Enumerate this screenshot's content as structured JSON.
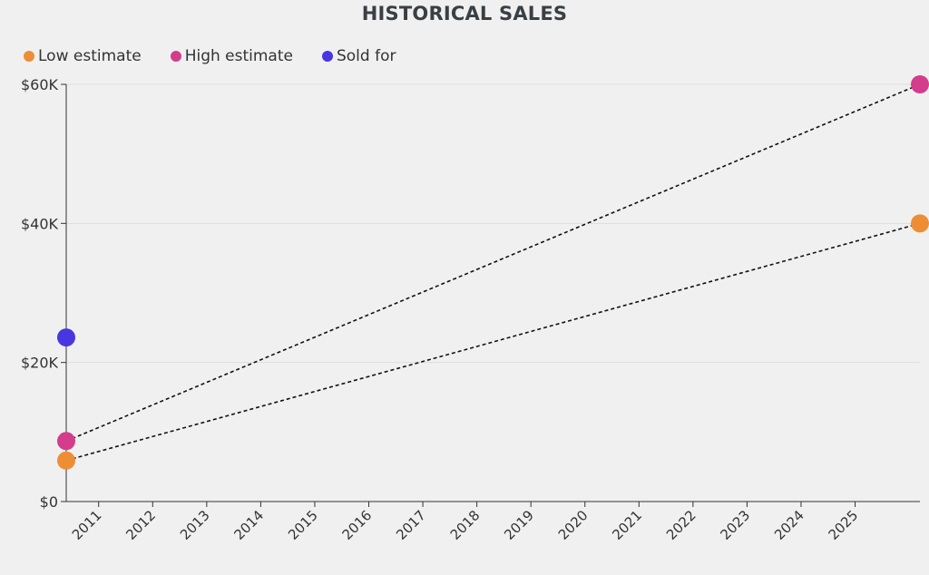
{
  "chart_data": {
    "type": "scatter",
    "title": "HISTORICAL SALES",
    "xlabel": "",
    "ylabel": "",
    "x_ticks": [
      "2011",
      "2012",
      "2013",
      "2014",
      "2015",
      "2016",
      "2017",
      "2018",
      "2019",
      "2020",
      "2021",
      "2022",
      "2023",
      "2024",
      "2025"
    ],
    "xlim": [
      2010.4,
      2026.2
    ],
    "ylim": [
      0,
      60000
    ],
    "y_ticks": [
      {
        "value": 0,
        "label": "$0"
      },
      {
        "value": 20000,
        "label": "$20K"
      },
      {
        "value": 40000,
        "label": "$40K"
      },
      {
        "value": 60000,
        "label": "$60K"
      }
    ],
    "grid": true,
    "legend_position": "top-left",
    "series": [
      {
        "name": "Low estimate",
        "color": "#ee8e34",
        "connect": "dashed",
        "points": [
          {
            "x": 2010.4,
            "y": 5900
          },
          {
            "x": 2026.2,
            "y": 40000
          }
        ]
      },
      {
        "name": "High estimate",
        "color": "#d43c8c",
        "connect": "dashed",
        "points": [
          {
            "x": 2010.4,
            "y": 8700
          },
          {
            "x": 2026.2,
            "y": 60000
          }
        ]
      },
      {
        "name": "Sold for",
        "color": "#4a36e0",
        "connect": "none",
        "points": [
          {
            "x": 2010.4,
            "y": 23600
          }
        ]
      }
    ]
  }
}
